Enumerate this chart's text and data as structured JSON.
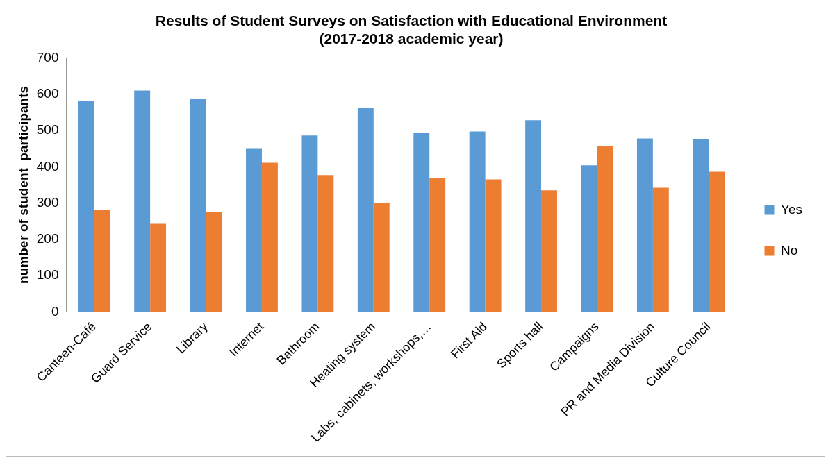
{
  "chart_data": {
    "type": "bar",
    "title": [
      "Results of Student Surveys on Satisfaction with Educational Environment",
      "(2017-2018 academic year)"
    ],
    "ylabel": "number of student  participants",
    "categories": [
      "Canteen-Café",
      "Guard Service",
      "Library",
      "Internet",
      "Bathroom",
      "Heating system",
      "Labs, cabinets, workshops,…",
      "First Aid",
      "Sports hall",
      "Campaigns",
      "PR and Media Division",
      "Culture Council"
    ],
    "series": [
      {
        "name": "Yes",
        "color": "#5b9bd5",
        "values": [
          582,
          610,
          587,
          451,
          486,
          563,
          494,
          497,
          528,
          404,
          478,
          477
        ]
      },
      {
        "name": "No",
        "color": "#ed7d31",
        "values": [
          282,
          243,
          275,
          411,
          377,
          301,
          368,
          365,
          335,
          458,
          342,
          386
        ]
      }
    ],
    "ylim": [
      0,
      700
    ],
    "yticks": [
      0,
      100,
      200,
      300,
      400,
      500,
      600,
      700
    ],
    "grid": "y",
    "legend": "right"
  }
}
